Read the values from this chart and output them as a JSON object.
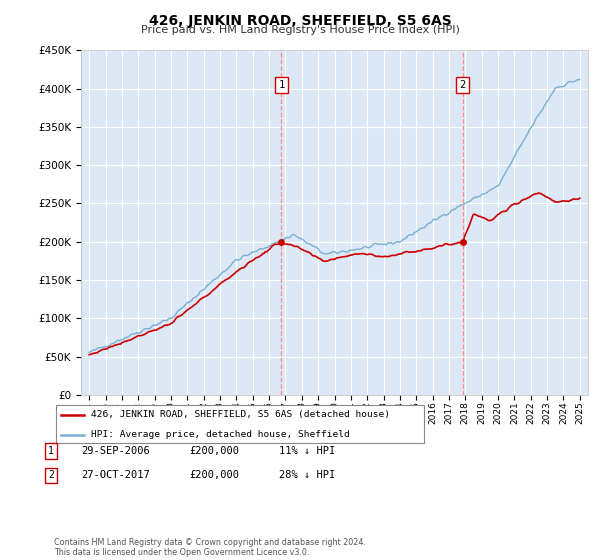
{
  "title": "426, JENKIN ROAD, SHEFFIELD, S5 6AS",
  "subtitle": "Price paid vs. HM Land Registry's House Price Index (HPI)",
  "legend_line1": "426, JENKIN ROAD, SHEFFIELD, S5 6AS (detached house)",
  "legend_line2": "HPI: Average price, detached house, Sheffield",
  "footnote": "Contains HM Land Registry data © Crown copyright and database right 2024.\nThis data is licensed under the Open Government Licence v3.0.",
  "transactions": [
    {
      "label": "1",
      "date": "29-SEP-2006",
      "price": "£200,000",
      "hpi_diff": "11% ↓ HPI",
      "x_year": 2006.75
    },
    {
      "label": "2",
      "date": "27-OCT-2017",
      "price": "£200,000",
      "hpi_diff": "28% ↓ HPI",
      "x_year": 2017.83
    }
  ],
  "ylim": [
    0,
    450000
  ],
  "yticks": [
    0,
    50000,
    100000,
    150000,
    200000,
    250000,
    300000,
    350000,
    400000,
    450000
  ],
  "ytick_labels": [
    "£0",
    "£50K",
    "£100K",
    "£150K",
    "£200K",
    "£250K",
    "£300K",
    "£350K",
    "£400K",
    "£450K"
  ],
  "xlim": [
    1994.5,
    2025.5
  ],
  "red_color": "#cc0000",
  "blue_color": "#7bafd4",
  "bg_color": "#dce8f5",
  "grid_color": "#ffffff",
  "dashed_color": "#ff8888"
}
